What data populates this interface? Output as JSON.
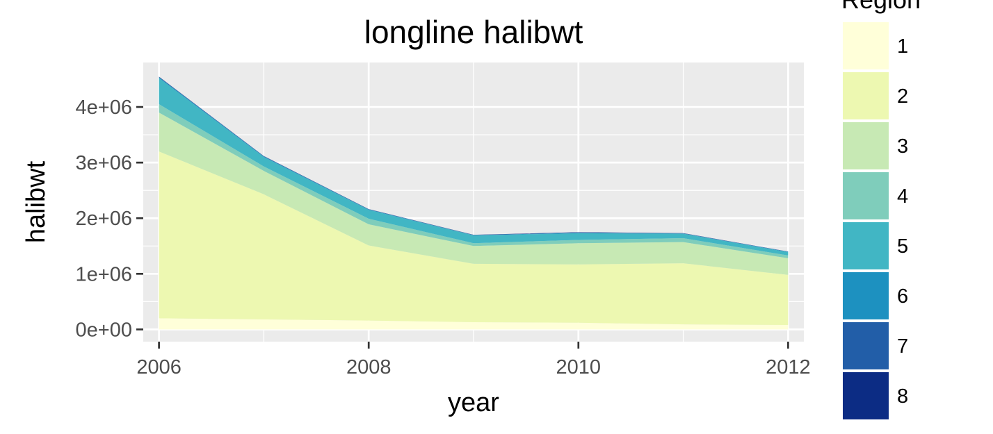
{
  "chart_data": {
    "type": "area",
    "title": "longline halibwt",
    "xlabel": "year",
    "ylabel": "halibwt",
    "x": [
      2006,
      2007,
      2008,
      2009,
      2010,
      2011,
      2012
    ],
    "xlim": [
      2005.85,
      2012.15
    ],
    "ylim": [
      -220000,
      4800000
    ],
    "x_ticks": [
      2006,
      2008,
      2010,
      2012
    ],
    "x_tick_labels": [
      "2006",
      "2008",
      "2010",
      "2012"
    ],
    "y_ticks": [
      0,
      1000000,
      2000000,
      3000000,
      4000000
    ],
    "y_tick_labels": [
      "0e+00",
      "1e+06",
      "2e+06",
      "3e+06",
      "4e+06"
    ],
    "stacked": true,
    "grid": true,
    "legend": {
      "title": "Region",
      "position": "right"
    },
    "series": [
      {
        "name": "1",
        "color": "#FFFFD9",
        "values": [
          200000,
          180000,
          160000,
          130000,
          120000,
          90000,
          80000
        ]
      },
      {
        "name": "2",
        "color": "#EDF8B1",
        "values": [
          3000000,
          2250000,
          1350000,
          1050000,
          1050000,
          1100000,
          900000
        ]
      },
      {
        "name": "3",
        "color": "#C7E9B4",
        "values": [
          700000,
          420000,
          380000,
          320000,
          380000,
          380000,
          300000
        ]
      },
      {
        "name": "4",
        "color": "#7FCDBB",
        "values": [
          150000,
          80000,
          100000,
          50000,
          60000,
          70000,
          50000
        ]
      },
      {
        "name": "5",
        "color": "#41B6C4",
        "values": [
          470000,
          170000,
          160000,
          140000,
          120000,
          80000,
          60000
        ]
      },
      {
        "name": "6",
        "color": "#1D91C0",
        "values": [
          15000,
          10000,
          8000,
          5000,
          8000,
          5000,
          5000
        ]
      },
      {
        "name": "7",
        "color": "#225EA8",
        "values": [
          5000,
          4000,
          3000,
          3000,
          5000,
          3000,
          3000
        ]
      },
      {
        "name": "8",
        "color": "#0C2C84",
        "values": [
          5000,
          4000,
          3000,
          3000,
          5000,
          3000,
          3000
        ]
      }
    ]
  }
}
